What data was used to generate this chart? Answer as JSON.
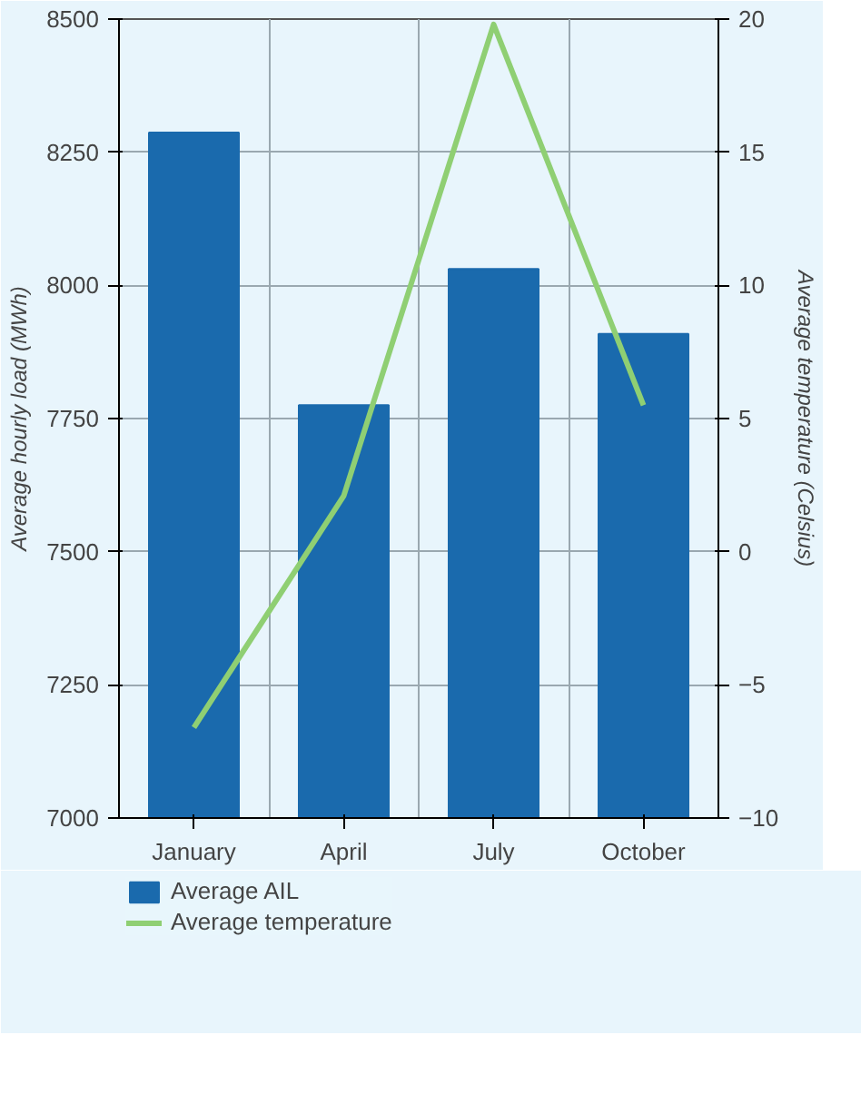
{
  "chart_data": {
    "type": "bar",
    "categories": [
      "January",
      "April",
      "July",
      "October"
    ],
    "ylabel": "Average hourly load (MWh)",
    "y2label": "Average temperature (Celsius)",
    "ylim": [
      7000,
      8500
    ],
    "yticks": [
      7000,
      7250,
      7500,
      7750,
      8000,
      8250,
      8500
    ],
    "y2lim": [
      -10,
      20
    ],
    "y2ticks": [
      -10,
      -5,
      0,
      5,
      10,
      15,
      20
    ],
    "grid": true,
    "legend": "bottom",
    "series": [
      {
        "name": "Average AIL",
        "color": "#1a6aad",
        "values": [
          8287,
          7775,
          8031,
          7909
        ]
      },
      {
        "name": "Average temperature",
        "type": "line",
        "axis": "y2",
        "color": "#8fcf73",
        "values": [
          -6.6,
          2.1,
          19.8,
          5.5
        ]
      }
    ]
  }
}
